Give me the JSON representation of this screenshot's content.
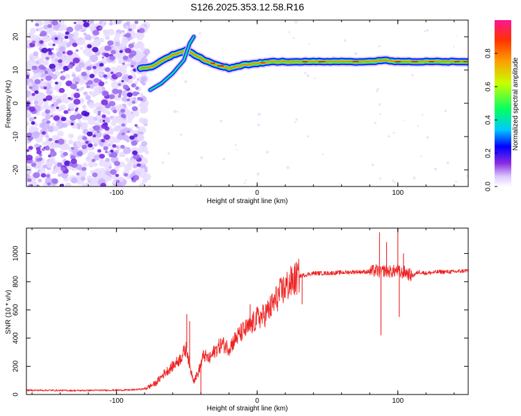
{
  "title": "S126.2025.353.12.58.R16",
  "chart_data": [
    {
      "type": "heatmap",
      "name": "spectrogram",
      "xlabel": "Height of straight line (km)",
      "ylabel": "Frequency (Hz)",
      "xlim": [
        -164,
        150
      ],
      "ylim": [
        -25,
        25
      ],
      "xticks": [
        -100,
        0,
        100
      ],
      "yticks": [
        20,
        10,
        0,
        -10,
        -20
      ],
      "colorbar": {
        "label": "Normalized spectral amplitude",
        "range": [
          0,
          1
        ],
        "ticks": [
          0.0,
          0.2,
          0.4,
          0.6,
          0.8
        ],
        "tick_labels": [
          "0.0",
          "0.2",
          "0.4",
          "0.6",
          "0.8"
        ],
        "colors": [
          "#ffffff",
          "#dcc8ff",
          "#8a2be2",
          "#0000ff",
          "#00c8ff",
          "#00ff66",
          "#c8ff00",
          "#ff9900",
          "#ff3300",
          "#ff1493"
        ]
      },
      "ridge": {
        "description_points": [
          {
            "x": -83,
            "y": 10.5
          },
          {
            "x": -75,
            "y": 11
          },
          {
            "x": -67,
            "y": 13
          },
          {
            "x": -60,
            "y": 14.5
          },
          {
            "x": -50,
            "y": 16
          },
          {
            "x": -42,
            "y": 14
          },
          {
            "x": -35,
            "y": 12.5
          },
          {
            "x": -28,
            "y": 11.5
          },
          {
            "x": -20,
            "y": 10.5
          },
          {
            "x": -10,
            "y": 11.5
          },
          {
            "x": 0,
            "y": 12
          },
          {
            "x": 10,
            "y": 12.5
          },
          {
            "x": 40,
            "y": 12.5
          },
          {
            "x": 80,
            "y": 12.5
          },
          {
            "x": 90,
            "y": 13
          },
          {
            "x": 100,
            "y": 12.5
          },
          {
            "x": 120,
            "y": 12.5
          },
          {
            "x": 150,
            "y": 12.5
          }
        ]
      }
    },
    {
      "type": "line",
      "name": "snr",
      "xlabel": "Height of straight line (km)",
      "ylabel": "SNR (10 * v/v)",
      "xlim": [
        -164,
        150
      ],
      "ylim": [
        0,
        1180
      ],
      "xticks": [
        -100,
        0,
        100
      ],
      "yticks": [
        0,
        200,
        400,
        600,
        800,
        1000
      ],
      "color": "#ee2222",
      "series": [
        {
          "name": "SNR",
          "x": [
            -164,
            -150,
            -130,
            -110,
            -90,
            -80,
            -72,
            -66,
            -60,
            -55,
            -52,
            -50,
            -48,
            -45,
            -42,
            -38,
            -34,
            -30,
            -25,
            -20,
            -15,
            -10,
            -5,
            0,
            5,
            10,
            15,
            20,
            25,
            30,
            35,
            40,
            50,
            60,
            70,
            80,
            85,
            88,
            90,
            95,
            100,
            102,
            105,
            110,
            115,
            120,
            130,
            140,
            150
          ],
          "y": [
            30,
            30,
            28,
            30,
            32,
            40,
            80,
            150,
            200,
            250,
            300,
            330,
            200,
            100,
            150,
            280,
            250,
            310,
            360,
            330,
            400,
            450,
            480,
            540,
            560,
            620,
            700,
            760,
            800,
            840,
            850,
            860,
            860,
            865,
            870,
            870,
            880,
            860,
            880,
            870,
            880,
            860,
            870,
            840,
            870,
            860,
            870,
            870,
            880
          ]
        }
      ],
      "spikes": [
        {
          "x": -50,
          "y": 570
        },
        {
          "x": -48,
          "y": 520
        },
        {
          "x": -40,
          "y": 10
        },
        {
          "x": -5,
          "y": 640
        },
        {
          "x": 32,
          "y": 640
        },
        {
          "x": 87,
          "y": 1150
        },
        {
          "x": 88,
          "y": 420
        },
        {
          "x": 92,
          "y": 1080
        },
        {
          "x": 100,
          "y": 1180
        },
        {
          "x": 101,
          "y": 550
        },
        {
          "x": 104,
          "y": 1000
        }
      ]
    }
  ]
}
